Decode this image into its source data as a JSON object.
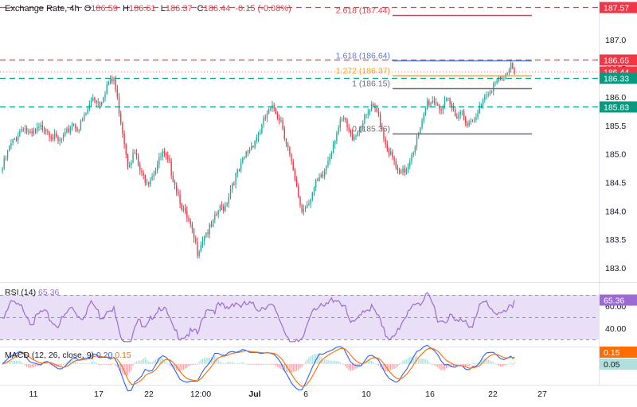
{
  "header": {
    "title": "Exchange Rate, 4h",
    "ohlc": [
      {
        "key": "O",
        "value": "186.59"
      },
      {
        "key": "H",
        "value": "186.61"
      },
      {
        "key": "L",
        "value": "186.37"
      },
      {
        "key": "C",
        "value": "186.44"
      }
    ],
    "change": "-0.15 (-0.08%)"
  },
  "rsi_legend": {
    "label": "RSI (14)",
    "value": "65.36"
  },
  "macd_legend": {
    "label": "MACD (12, 26, close, 9)",
    "v1": "0.20",
    "v2": "0.15"
  },
  "colors": {
    "up": "#26a69a",
    "down": "#f23645",
    "red_line": "#f23645",
    "green_line": "#089981",
    "fib_1618": "#5b7cd6",
    "fib_1272": "#f7a21b",
    "fib_neutral": "#6b6f78",
    "rsi": "#9c6ad7",
    "rsi_band": "#e9e0f7",
    "macd": "#2962ff",
    "signal": "#ff6d00"
  },
  "chart_data": [
    {
      "type": "candlestick",
      "title": "Exchange Rate, 4h",
      "x_tick_labels": [
        "11",
        "17",
        "22",
        "12:00",
        "Jul",
        "6",
        "10",
        "16",
        "22",
        "27"
      ],
      "y_tick_labels": [
        "187.0",
        "186.5",
        "186.0",
        "185.5",
        "185.0",
        "184.5",
        "184.0",
        "183.5",
        "183.0"
      ],
      "ylim": [
        182.75,
        187.7
      ],
      "approx_close_path": [
        [
          0,
          184.75
        ],
        [
          4,
          185.1
        ],
        [
          8,
          185.3
        ],
        [
          12,
          185.5
        ],
        [
          16,
          185.3
        ],
        [
          20,
          185.4
        ],
        [
          24,
          185.5
        ],
        [
          28,
          185.35
        ],
        [
          32,
          185.2
        ],
        [
          36,
          185.3
        ],
        [
          40,
          185.55
        ],
        [
          44,
          185.45
        ],
        [
          48,
          185.7
        ],
        [
          52,
          186.0
        ],
        [
          56,
          185.9
        ],
        [
          60,
          186.2
        ],
        [
          64,
          186.3
        ],
        [
          68,
          185.6
        ],
        [
          72,
          184.85
        ],
        [
          76,
          185.0
        ],
        [
          80,
          184.6
        ],
        [
          84,
          184.55
        ],
        [
          88,
          184.75
        ],
        [
          92,
          185.0
        ],
        [
          96,
          184.8
        ],
        [
          100,
          184.4
        ],
        [
          104,
          184.0
        ],
        [
          108,
          183.7
        ],
        [
          112,
          183.3
        ],
        [
          116,
          183.6
        ],
        [
          120,
          183.7
        ],
        [
          124,
          184.0
        ],
        [
          128,
          184.1
        ],
        [
          132,
          184.5
        ],
        [
          136,
          184.7
        ],
        [
          140,
          185.0
        ],
        [
          144,
          185.2
        ],
        [
          148,
          185.4
        ],
        [
          152,
          185.7
        ],
        [
          156,
          185.8
        ],
        [
          160,
          185.6
        ],
        [
          164,
          185.1
        ],
        [
          168,
          184.5
        ],
        [
          172,
          184.0
        ],
        [
          176,
          184.2
        ],
        [
          180,
          184.45
        ],
        [
          184,
          184.6
        ],
        [
          188,
          185.0
        ],
        [
          192,
          185.4
        ],
        [
          196,
          185.6
        ],
        [
          200,
          185.3
        ],
        [
          204,
          185.4
        ],
        [
          208,
          185.6
        ],
        [
          212,
          185.8
        ],
        [
          216,
          185.7
        ],
        [
          220,
          185.2
        ],
        [
          224,
          184.9
        ],
        [
          228,
          184.6
        ],
        [
          232,
          184.75
        ],
        [
          236,
          185.1
        ],
        [
          240,
          185.4
        ],
        [
          244,
          185.9
        ],
        [
          248,
          185.95
        ],
        [
          252,
          185.8
        ],
        [
          256,
          185.9
        ],
        [
          260,
          185.7
        ],
        [
          264,
          185.75
        ],
        [
          268,
          185.5
        ],
        [
          272,
          185.6
        ],
        [
          276,
          186.0
        ],
        [
          280,
          186.15
        ],
        [
          284,
          186.25
        ],
        [
          288,
          186.3
        ],
        [
          292,
          186.6
        ],
        [
          294,
          186.44
        ]
      ]
    },
    {
      "type": "line",
      "title": "RSI (14)",
      "last_value": 65.36,
      "y_tick_labels": [
        "60.00",
        "40.00"
      ],
      "bands": [
        30,
        50,
        70
      ]
    },
    {
      "type": "bar",
      "title": "MACD (12, 26, close, 9)",
      "series": [
        {
          "name": "MACD",
          "last_value": 0.2
        },
        {
          "name": "Signal",
          "last_value": 0.15
        }
      ],
      "right_badges": [
        "0.15",
        "0.05"
      ]
    }
  ],
  "levels": {
    "horizontal": [
      {
        "price": 187.57,
        "label": "187.57",
        "style": "dashed",
        "color": "#f23645"
      },
      {
        "price": 186.65,
        "label": "186.65",
        "style": "dashed",
        "color": "#f23645"
      },
      {
        "price": 186.44,
        "label": "186.44",
        "style": "dotted",
        "color": "#f7a0a0",
        "badge_color": "#f23645"
      },
      {
        "price": 186.33,
        "label": "186.33",
        "style": "dashed",
        "color": "#089981"
      },
      {
        "price": 185.83,
        "label": "185.83",
        "style": "dashed",
        "color": "#089981"
      }
    ],
    "fibonacci": [
      {
        "label": "2.618 (187.44)",
        "price": 187.44,
        "color": "#f23645"
      },
      {
        "label": "1.618 (186.64)",
        "price": 186.64,
        "color": "#5b7cd6"
      },
      {
        "label": "1.272 (186.37)",
        "price": 186.37,
        "color": "#f7a21b"
      },
      {
        "label": "1 (186.15)",
        "price": 186.15,
        "color": "#6b6f78"
      },
      {
        "label": "0 (185.36)",
        "price": 185.36,
        "color": "#6b6f78"
      }
    ]
  }
}
